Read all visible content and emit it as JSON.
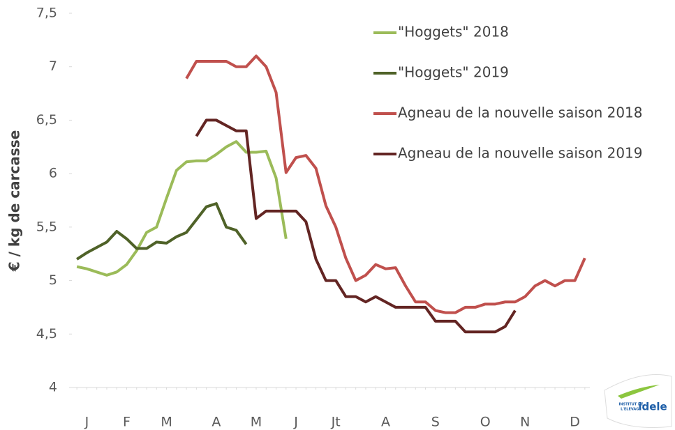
{
  "chart_data": {
    "type": "line",
    "ylabel": "€ / kg de carcasse",
    "categories": [
      null,
      "J",
      null,
      null,
      null,
      "F",
      null,
      null,
      null,
      "M",
      null,
      null,
      null,
      null,
      "A",
      null,
      null,
      null,
      "M",
      null,
      null,
      null,
      "J",
      null,
      null,
      null,
      "Jt",
      null,
      null,
      null,
      null,
      "A",
      null,
      null,
      null,
      null,
      "S",
      null,
      null,
      null,
      null,
      "O",
      null,
      null,
      null,
      "N",
      null,
      null,
      null,
      null,
      "D",
      null
    ],
    "series": [
      {
        "name": "\"Hoggets\" 2018",
        "color": "#9bbb59",
        "values": [
          5.13,
          5.11,
          5.08,
          5.05,
          5.08,
          5.15,
          5.28,
          5.45,
          5.5,
          5.77,
          6.03,
          6.11,
          6.12,
          6.12,
          6.18,
          6.25,
          6.3,
          6.2,
          6.2,
          6.21,
          5.96,
          5.39,
          null,
          null,
          null,
          null,
          null,
          null,
          null,
          null,
          null,
          null,
          null,
          null,
          null,
          null,
          null,
          null,
          null,
          null,
          null,
          null,
          null,
          null,
          null,
          null,
          null,
          null,
          null,
          null,
          null,
          null
        ]
      },
      {
        "name": "\"Hoggets\" 2019",
        "color": "#4f6228",
        "values": [
          5.2,
          5.26,
          5.31,
          5.36,
          5.46,
          5.39,
          5.3,
          5.3,
          5.36,
          5.35,
          5.41,
          5.45,
          5.57,
          5.69,
          5.72,
          5.5,
          5.47,
          5.34,
          null,
          null,
          null,
          null,
          null,
          null,
          null,
          null,
          null,
          null,
          null,
          null,
          null,
          null,
          null,
          null,
          null,
          null,
          null,
          null,
          null,
          null,
          null,
          null,
          null,
          null,
          null,
          null,
          null,
          null,
          null,
          null,
          null,
          null
        ]
      },
      {
        "name": "Agneau de la nouvelle saison 2018",
        "color": "#c0504d",
        "values": [
          null,
          null,
          null,
          null,
          null,
          null,
          null,
          null,
          null,
          null,
          null,
          6.89,
          7.05,
          7.05,
          7.05,
          7.05,
          7.0,
          7.0,
          7.1,
          7.0,
          6.76,
          6.01,
          6.15,
          6.17,
          6.05,
          5.7,
          5.5,
          5.21,
          5.0,
          5.05,
          5.15,
          5.11,
          5.12,
          4.95,
          4.8,
          4.8,
          4.72,
          4.7,
          4.7,
          4.75,
          4.75,
          4.78,
          4.78,
          4.8,
          4.8,
          4.85,
          4.95,
          5.0,
          4.95,
          5.0,
          5.0,
          5.21
        ]
      },
      {
        "name": "Agneau de la nouvelle saison 2019",
        "color": "#632523",
        "values": [
          null,
          null,
          null,
          null,
          null,
          null,
          null,
          null,
          null,
          null,
          null,
          null,
          6.35,
          6.5,
          6.5,
          6.45,
          6.4,
          6.4,
          5.58,
          5.65,
          5.65,
          5.65,
          5.65,
          5.55,
          5.2,
          5.0,
          5.0,
          4.85,
          4.85,
          4.8,
          4.85,
          4.8,
          4.75,
          4.75,
          4.75,
          4.75,
          4.62,
          4.62,
          4.62,
          4.52,
          4.52,
          4.52,
          4.52,
          4.57,
          4.72,
          null,
          null,
          null,
          null,
          null,
          null,
          null
        ]
      }
    ],
    "ylim": [
      4,
      7.5
    ],
    "yticks": [
      4,
      {
        "value": 4.5,
        "label": "4,5"
      },
      5,
      {
        "value": 5.5,
        "label": "5,5"
      },
      6,
      {
        "value": 6.5,
        "label": "6,5"
      },
      7,
      {
        "value": 7.5,
        "label": "7,5"
      }
    ],
    "grid": false,
    "legend": "top-right",
    "logo": {
      "line1": "INSTITUT DE",
      "line2": "L'ELEVAGE",
      "brand": "idele"
    }
  }
}
